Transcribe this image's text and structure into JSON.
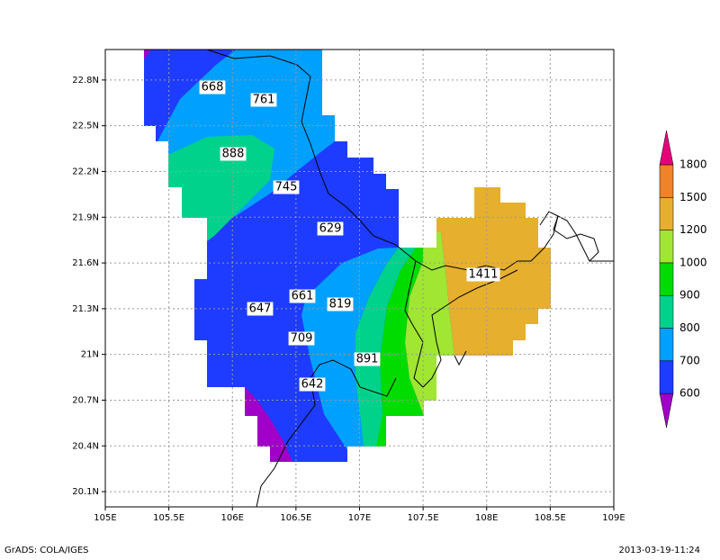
{
  "map": {
    "xlim": [
      105,
      109
    ],
    "ylim": [
      20,
      23
    ],
    "xticks": [
      {
        "value": 105,
        "label": "105E"
      },
      {
        "value": 105.5,
        "label": "105.5E"
      },
      {
        "value": 106,
        "label": "106E"
      },
      {
        "value": 106.5,
        "label": "106.5E"
      },
      {
        "value": 107,
        "label": "107E"
      },
      {
        "value": 107.5,
        "label": "107.5E"
      },
      {
        "value": 108,
        "label": "108E"
      },
      {
        "value": 108.5,
        "label": "108.5E"
      },
      {
        "value": 109,
        "label": "109E"
      }
    ],
    "yticks": [
      {
        "value": 20.1,
        "label": "20.1N"
      },
      {
        "value": 20.4,
        "label": "20.4N"
      },
      {
        "value": 20.7,
        "label": "20.7N"
      },
      {
        "value": 21,
        "label": "21N"
      },
      {
        "value": 21.3,
        "label": "21.3N"
      },
      {
        "value": 21.6,
        "label": "21.6N"
      },
      {
        "value": 21.9,
        "label": "21.9N"
      },
      {
        "value": 22.2,
        "label": "22.2N"
      },
      {
        "value": 22.5,
        "label": "22.5N"
      },
      {
        "value": 22.8,
        "label": "22.8N"
      }
    ],
    "grid": true,
    "contour_labels": [
      668,
      761,
      888,
      745,
      629,
      1411,
      661,
      819,
      647,
      709,
      891,
      642
    ],
    "colorbar": {
      "levels": [
        600,
        700,
        800,
        900,
        1000,
        1200,
        1500,
        1800
      ],
      "colors": [
        "#a000c8",
        "#1e3cff",
        "#00a0ff",
        "#00d28c",
        "#00dc00",
        "#a0e632",
        "#e6af2d",
        "#f08228",
        "#e6007a"
      ]
    }
  },
  "footer": {
    "left": "GrADS: COLA/IGES",
    "right": "2013-03-19-11:24"
  }
}
